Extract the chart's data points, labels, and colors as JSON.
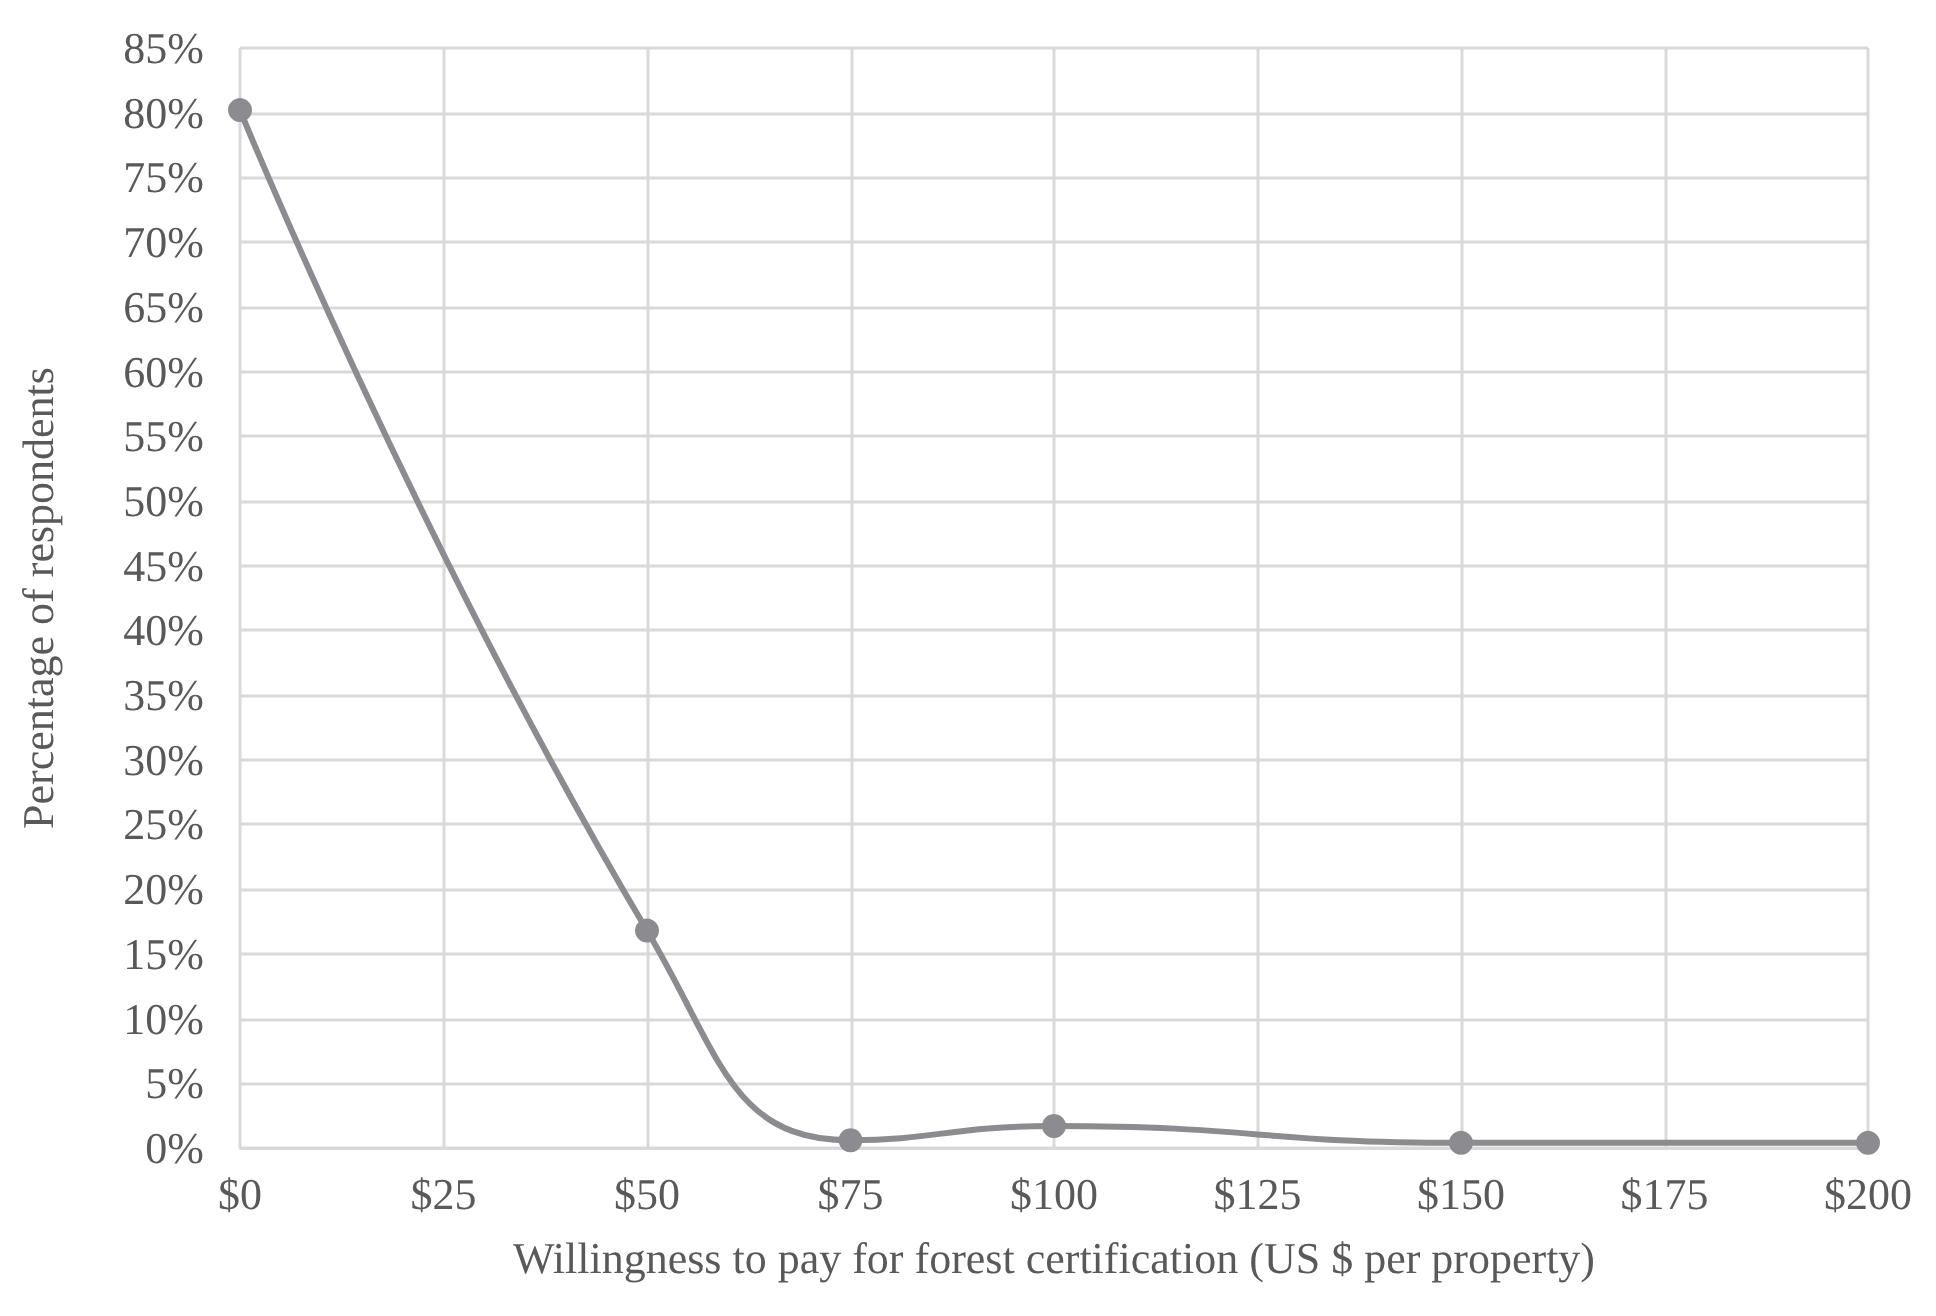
{
  "chart_data": {
    "type": "line",
    "xlabel": "Willingness to pay for forest certification (US $ per property)",
    "ylabel": "Percentage of respondents",
    "x": [
      0,
      50,
      75,
      100,
      150,
      200
    ],
    "series": [
      {
        "color": "#8c8c90",
        "values": [
          80.2,
          16.8,
          0.6,
          1.7,
          0.4,
          0.4
        ]
      }
    ],
    "xlim": [
      0,
      200
    ],
    "xticks": [
      {
        "value": 0,
        "label": "$0"
      },
      {
        "value": 25,
        "label": "$25"
      },
      {
        "value": 50,
        "label": "$50"
      },
      {
        "value": 75,
        "label": "$75"
      },
      {
        "value": 100,
        "label": "$100"
      },
      {
        "value": 125,
        "label": "$125"
      },
      {
        "value": 150,
        "label": "$150"
      },
      {
        "value": 175,
        "label": "$175"
      },
      {
        "value": 200,
        "label": "$200"
      }
    ],
    "ylim": [
      0,
      85
    ],
    "yticks": [
      {
        "value": 0,
        "label": "0%"
      },
      {
        "value": 5,
        "label": "5%"
      },
      {
        "value": 10,
        "label": "10%"
      },
      {
        "value": 15,
        "label": "15%"
      },
      {
        "value": 20,
        "label": "20%"
      },
      {
        "value": 25,
        "label": "25%"
      },
      {
        "value": 30,
        "label": "30%"
      },
      {
        "value": 35,
        "label": "35%"
      },
      {
        "value": 40,
        "label": "40%"
      },
      {
        "value": 45,
        "label": "45%"
      },
      {
        "value": 50,
        "label": "50%"
      },
      {
        "value": 55,
        "label": "55%"
      },
      {
        "value": 60,
        "label": "60%"
      },
      {
        "value": 65,
        "label": "65%"
      },
      {
        "value": 70,
        "label": "70%"
      },
      {
        "value": 75,
        "label": "75%"
      },
      {
        "value": 80,
        "label": "80%"
      },
      {
        "value": 85,
        "label": "85%"
      }
    ],
    "grid": true,
    "marker": "circle",
    "line_style": "solid"
  }
}
